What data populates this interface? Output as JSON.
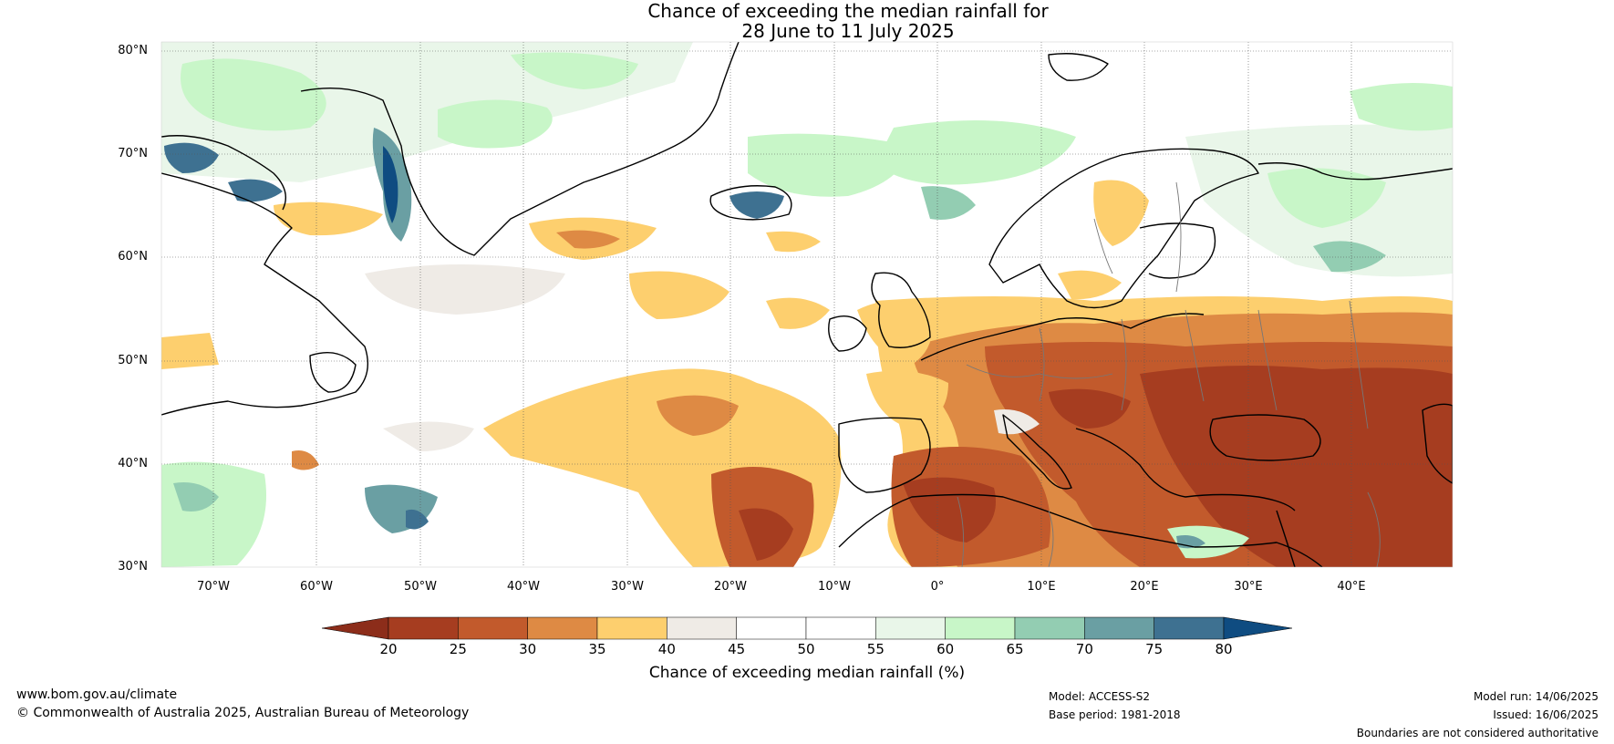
{
  "title": {
    "line1": "Chance of exceeding the median rainfall for",
    "line2": "28 June to 11 July 2025"
  },
  "map": {
    "lat_labels": [
      "80°N",
      "70°N",
      "60°N",
      "50°N",
      "40°N",
      "30°N"
    ],
    "lon_labels": [
      "70°W",
      "60°W",
      "50°W",
      "40°W",
      "30°W",
      "20°W",
      "10°W",
      "0°",
      "10°E",
      "20°E",
      "30°E",
      "40°E"
    ],
    "lat_range": [
      30,
      80
    ],
    "lon_range": [
      -75,
      50
    ],
    "gridlines": true
  },
  "colorbar": {
    "ticks": [
      "20",
      "25",
      "30",
      "35",
      "40",
      "45",
      "50",
      "55",
      "60",
      "65",
      "70",
      "75",
      "80"
    ],
    "colors": [
      "#a63d20",
      "#c25a2c",
      "#de8a44",
      "#fdcf6e",
      "#efebe6",
      "#ffffff",
      "#ffffff",
      "#e9f6e9",
      "#c8f6c8",
      "#93cdb2",
      "#6a9fa3",
      "#3e7191"
    ],
    "under_color": "#8c2d1a",
    "over_color": "#0f4c81",
    "label": "Chance of exceeding median rainfall (%)"
  },
  "footer": {
    "website": "www.bom.gov.au/climate",
    "copyright": "© Commonwealth of Australia 2025, Australian Bureau of Meteorology",
    "model": "Model: ACCESS-S2",
    "base_period": "Base period: 1981-2018",
    "model_run": "Model run: 14/06/2025",
    "issued": "Issued: 16/06/2025",
    "disclaimer": "Boundaries are not considered authoritative"
  }
}
